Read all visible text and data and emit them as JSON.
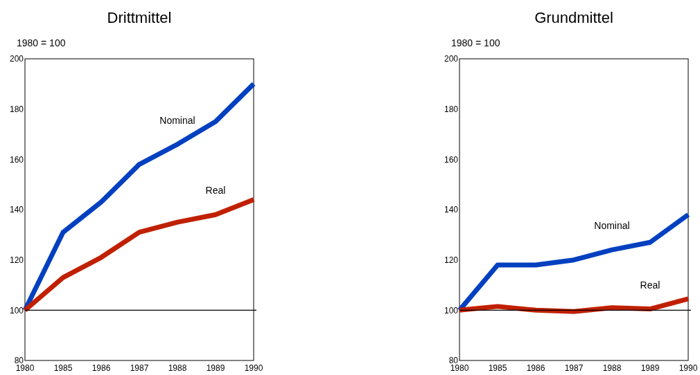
{
  "chart_data": [
    {
      "type": "line",
      "title": "Drittmittel",
      "subtitle": "1980 = 100",
      "categories": [
        "1980",
        "1985",
        "1986",
        "1987",
        "1988",
        "1989",
        "1990"
      ],
      "series": [
        {
          "name": "Nominal",
          "color": "#0040c0",
          "values": [
            100,
            131,
            143,
            158,
            166,
            175,
            190
          ]
        },
        {
          "name": "Real",
          "color": "#c02000",
          "values": [
            100,
            113,
            121,
            131,
            135,
            138,
            144
          ]
        }
      ],
      "ylim": [
        80,
        200
      ],
      "yticks": [
        80,
        100,
        120,
        140,
        160,
        180,
        200
      ],
      "ref_lines": [
        {
          "axis": "y",
          "value": 100,
          "color": "#000000"
        }
      ]
    },
    {
      "type": "line",
      "title": "Grundmittel",
      "subtitle": "1980 = 100",
      "categories": [
        "1980",
        "1985",
        "1986",
        "1987",
        "1988",
        "1989",
        "1990"
      ],
      "series": [
        {
          "name": "Nominal",
          "color": "#0040c0",
          "values": [
            100,
            118,
            118,
            120,
            124,
            127,
            138
          ]
        },
        {
          "name": "Real",
          "color": "#c02000",
          "values": [
            100,
            101.5,
            100,
            99.5,
            101,
            100.5,
            104.5
          ]
        }
      ],
      "ylim": [
        80,
        200
      ],
      "yticks": [
        80,
        100,
        120,
        140,
        160,
        180,
        200
      ],
      "ref_lines": [
        {
          "axis": "y",
          "value": 100,
          "color": "#000000"
        }
      ]
    }
  ]
}
